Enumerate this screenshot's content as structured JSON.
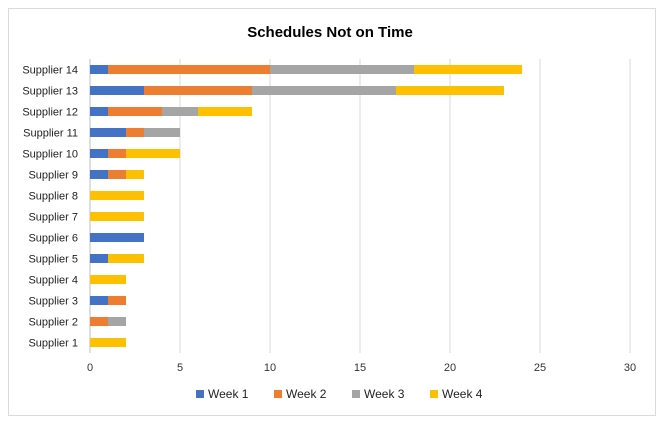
{
  "chart_data": {
    "type": "bar",
    "orientation": "horizontal",
    "stacked": true,
    "title": "Schedules Not on Time",
    "xlabel": "",
    "ylabel": "",
    "xlim": [
      0,
      30
    ],
    "xticks": [
      0,
      5,
      10,
      15,
      20,
      25,
      30
    ],
    "grid": "vertical",
    "legend_position": "bottom",
    "categories": [
      "Supplier 1",
      "Supplier 2",
      "Supplier 3",
      "Supplier 4",
      "Supplier 5",
      "Supplier 6",
      "Supplier 7",
      "Supplier 8",
      "Supplier 9",
      "Supplier 10",
      "Supplier 11",
      "Supplier 12",
      "Supplier 13",
      "Supplier 14"
    ],
    "series": [
      {
        "name": "Week 1",
        "color": "#4472C4",
        "values": [
          0,
          0,
          1,
          0,
          1,
          3,
          0,
          0,
          1,
          1,
          2,
          1,
          3,
          1
        ]
      },
      {
        "name": "Week 2",
        "color": "#ED7D31",
        "values": [
          0,
          1,
          1,
          0,
          0,
          0,
          0,
          0,
          1,
          1,
          1,
          3,
          6,
          9
        ]
      },
      {
        "name": "Week 3",
        "color": "#A5A5A5",
        "values": [
          0,
          1,
          0,
          0,
          0,
          0,
          0,
          0,
          0,
          0,
          2,
          2,
          8,
          8
        ]
      },
      {
        "name": "Week 4",
        "color": "#FFC000",
        "values": [
          2,
          0,
          0,
          2,
          2,
          0,
          3,
          3,
          1,
          3,
          0,
          3,
          6,
          6
        ]
      }
    ]
  }
}
